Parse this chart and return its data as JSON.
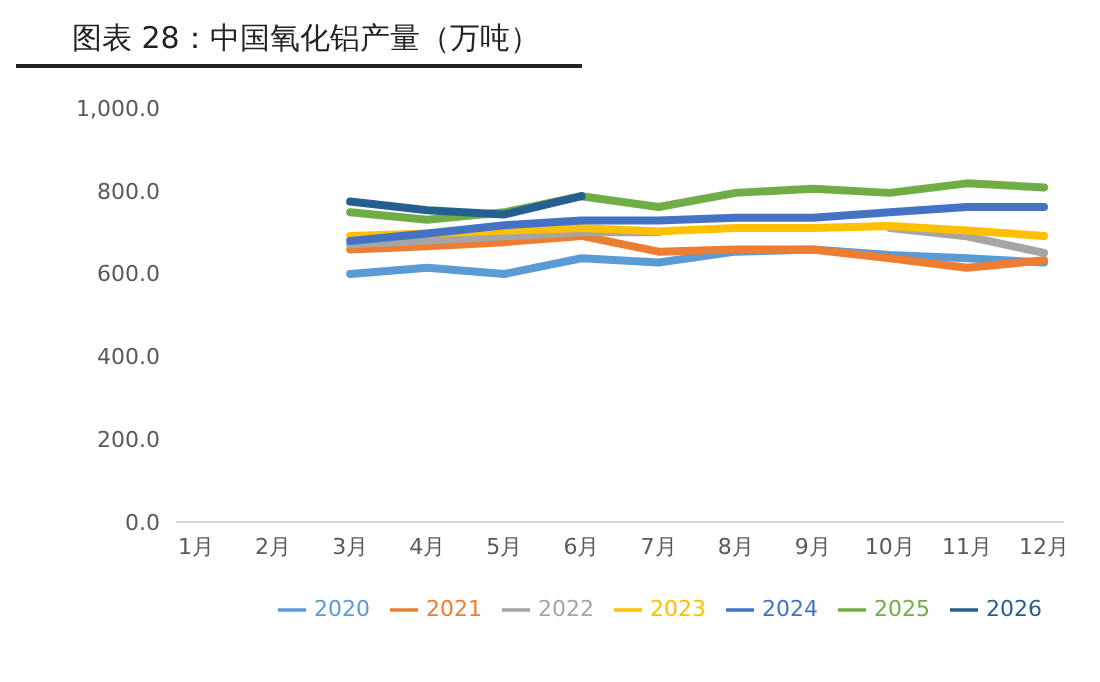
{
  "chart_data": {
    "type": "line",
    "title": "图表 28：中国氧化铝产量（万吨）",
    "categories": [
      "1月",
      "2月",
      "3月",
      "4月",
      "5月",
      "6月",
      "7月",
      "8月",
      "9月",
      "10月",
      "11月",
      "12月"
    ],
    "series": [
      {
        "name": "2020",
        "color": "#5b9bd5",
        "values": [
          null,
          null,
          599,
          614,
          599,
          637,
          627,
          653,
          658,
          645,
          637,
          627
        ]
      },
      {
        "name": "2021",
        "color": "#ed7d31",
        "values": [
          null,
          null,
          658,
          666,
          676,
          691,
          653,
          658,
          658,
          637,
          614,
          632
        ]
      },
      {
        "name": "2022",
        "color": "#a5a5a5",
        "values": [
          null,
          null,
          670,
          680,
          690,
          700,
          700,
          null,
          null,
          710,
          690,
          650
        ]
      },
      {
        "name": "2023",
        "color": "#ffc000",
        "values": [
          null,
          null,
          691,
          697,
          704,
          710,
          702,
          710,
          710,
          715,
          704,
          691
        ]
      },
      {
        "name": "2024",
        "color": "#4472c4",
        "values": [
          null,
          null,
          679,
          697,
          717,
          728,
          728,
          735,
          735,
          748,
          761,
          761
        ]
      },
      {
        "name": "2025",
        "color": "#70ad47",
        "values": [
          null,
          null,
          748,
          730,
          748,
          787,
          761,
          795,
          805,
          795,
          818,
          808
        ]
      },
      {
        "name": "2026",
        "color": "#255e91",
        "values": [
          null,
          null,
          774,
          753,
          743,
          787,
          null,
          null,
          null,
          null,
          null,
          null
        ]
      }
    ],
    "ylim": [
      0,
      1000
    ],
    "yticks": [
      {
        "value": 0,
        "label": "0.0"
      },
      {
        "value": 200,
        "label": "200.0"
      },
      {
        "value": 400,
        "label": "400.0"
      },
      {
        "value": 600,
        "label": "600.0"
      },
      {
        "value": 800,
        "label": "800.0"
      },
      {
        "value": 1000,
        "label": "1,000.0"
      }
    ],
    "grid": false,
    "legend": "bottom",
    "marker": "none",
    "line_style": "solid"
  }
}
